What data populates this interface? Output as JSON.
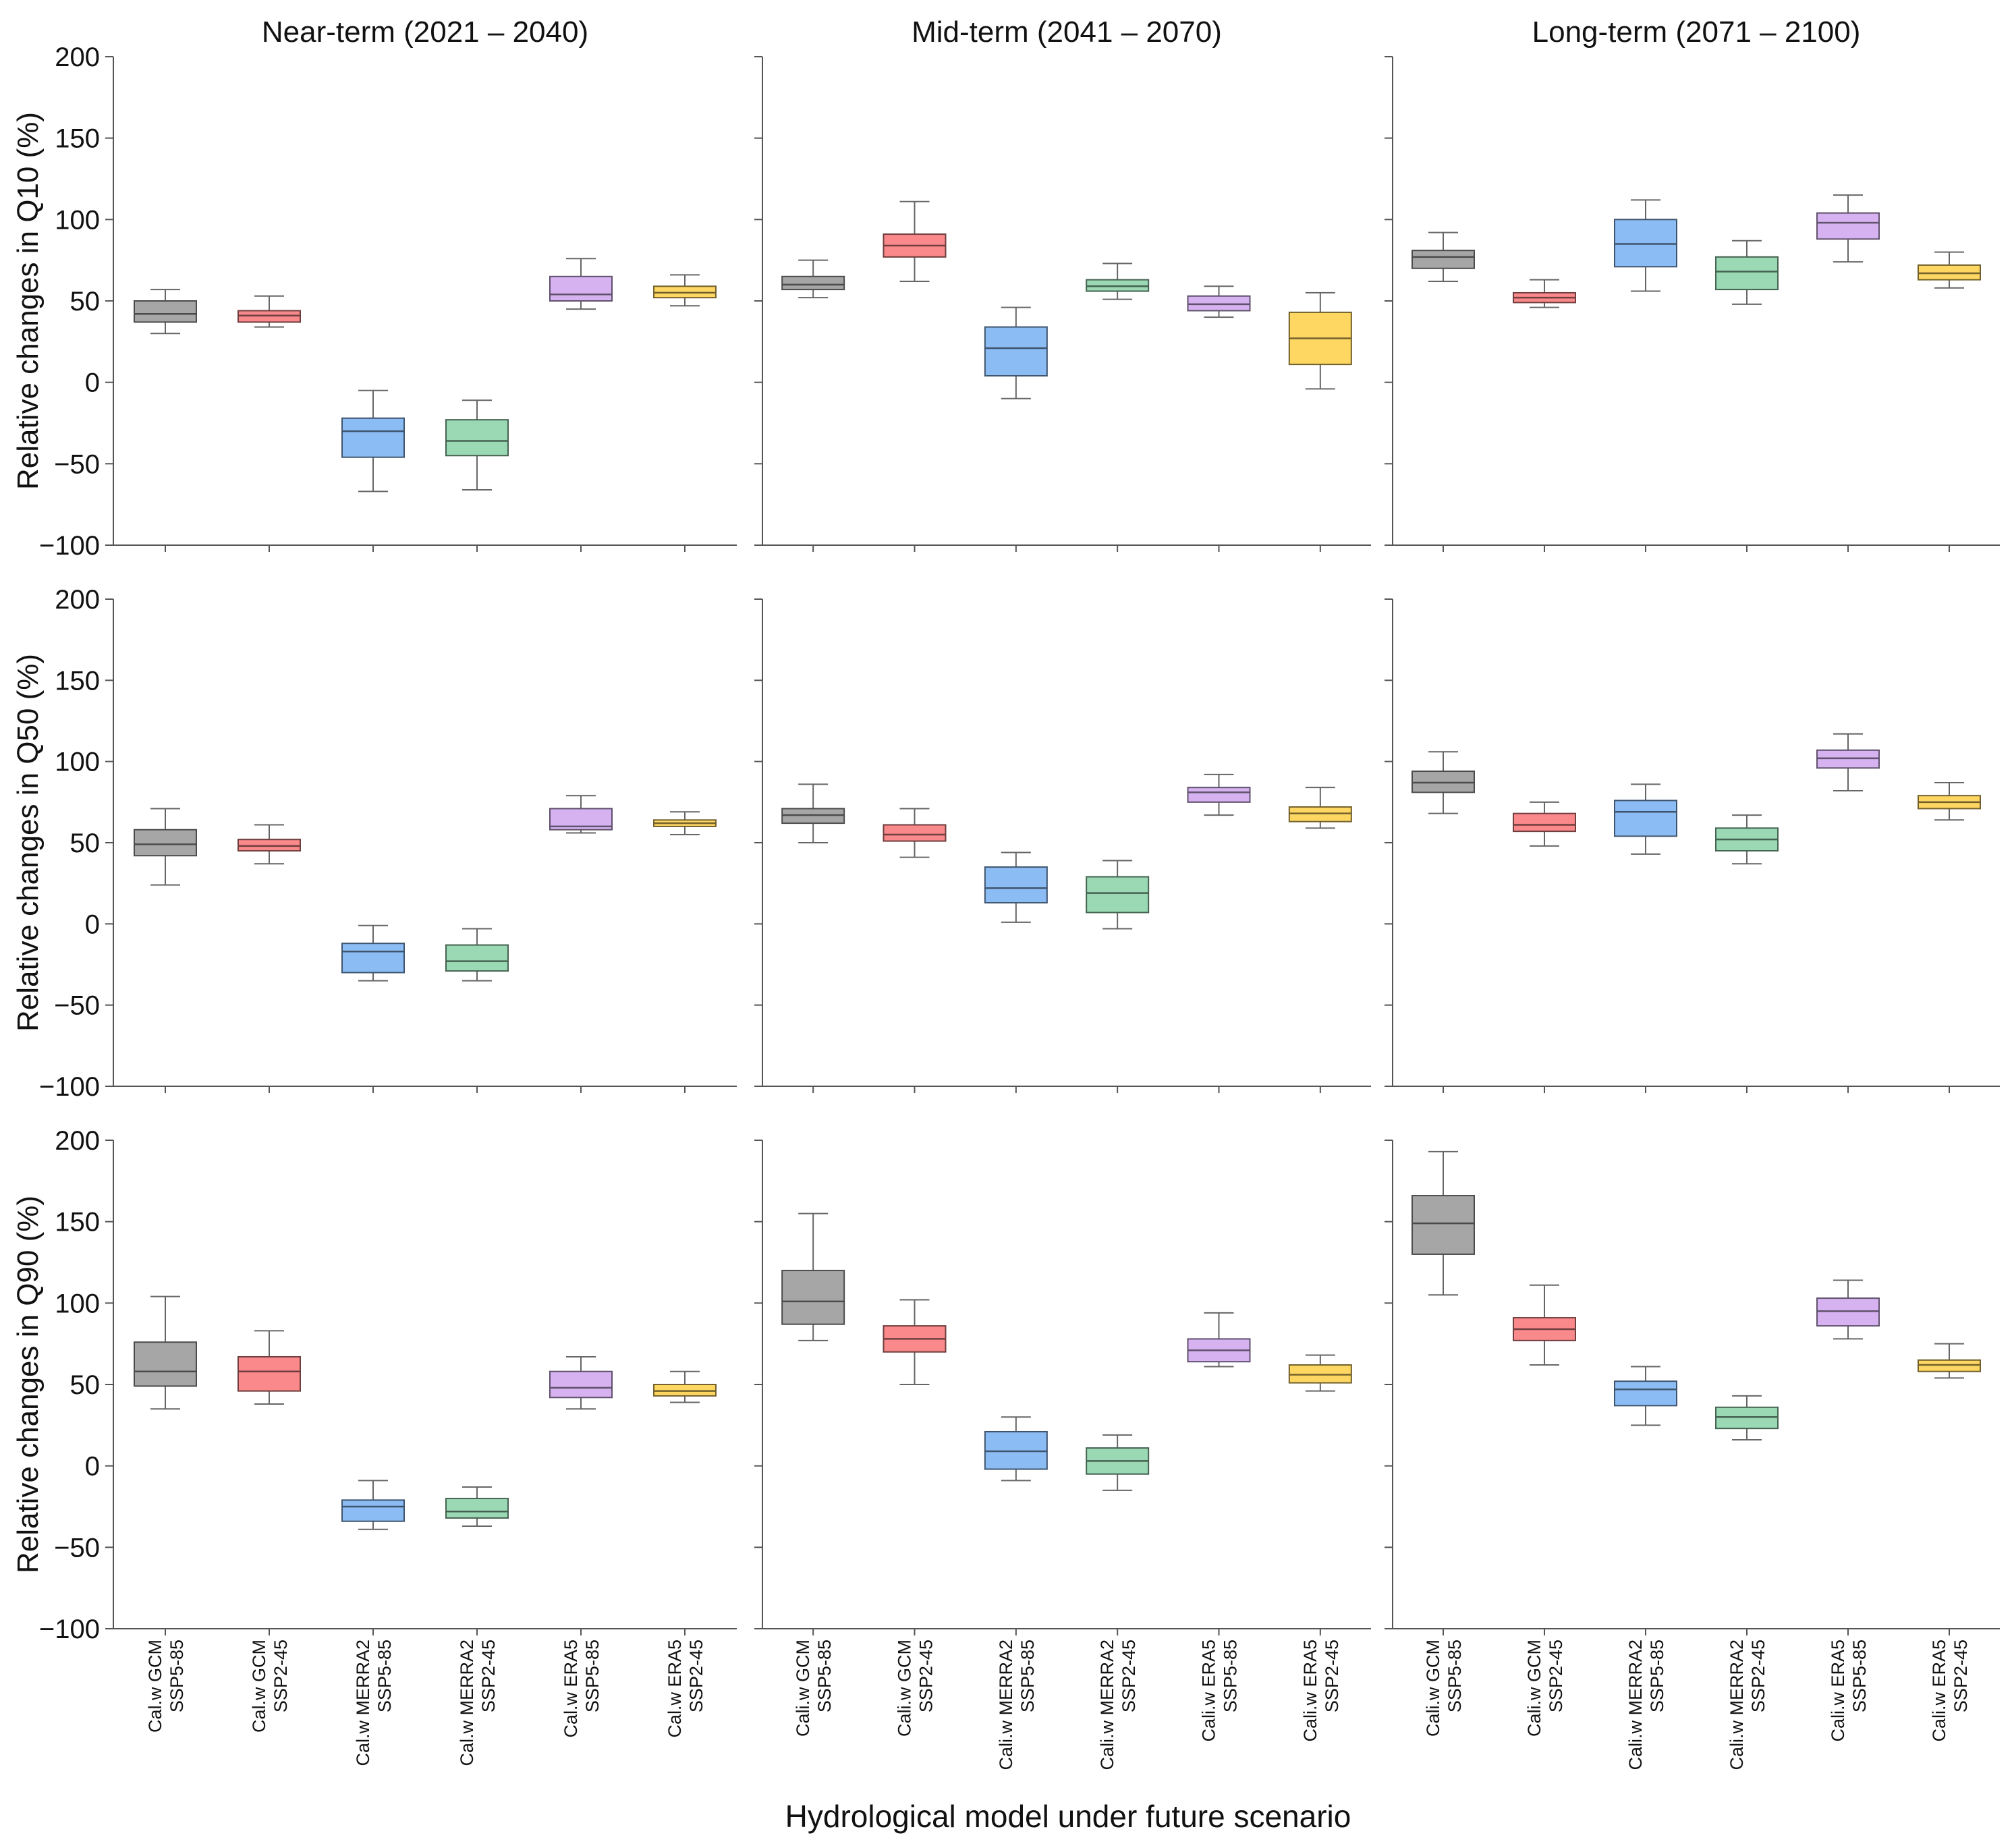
{
  "chart_data": {
    "type": "box",
    "xlabel": "Hydrological model under future scenario",
    "ylim": [
      -100,
      200
    ],
    "yticks": [
      -100,
      -50,
      0,
      50,
      100,
      150,
      200
    ],
    "grid": false,
    "legend": "none",
    "columns": [
      {
        "title": "Near-term (2021 – 2040)",
        "categories": [
          [
            "Cal.w GCM",
            "SSP5-85"
          ],
          [
            "Cal.w GCM",
            "SSP2-45"
          ],
          [
            "Cal.w MERRA2",
            "SSP5-85"
          ],
          [
            "Cal.w MERRA2",
            "SSP2-45"
          ],
          [
            "Cal.w ERA5",
            "SSP5-85"
          ],
          [
            "Cal.w ERA5",
            "SSP2-45"
          ]
        ]
      },
      {
        "title": "Mid-term (2041 – 2070)",
        "categories": [
          [
            "Cali.w GCM",
            "SSP5-85"
          ],
          [
            "Cali.w GCM",
            "SSP2-45"
          ],
          [
            "Cali.w MERRA2",
            "SSP5-85"
          ],
          [
            "Cali.w MERRA2",
            "SSP2-45"
          ],
          [
            "Cali.w ERA5",
            "SSP5-85"
          ],
          [
            "Cali.w ERA5",
            "SSP2-45"
          ]
        ]
      },
      {
        "title": "Long-term (2071 – 2100)",
        "categories": [
          [
            "Cali.w GCM",
            "SSP5-85"
          ],
          [
            "Cali.w GCM",
            "SSP2-45"
          ],
          [
            "Cali.w MERRA2",
            "SSP5-85"
          ],
          [
            "Cali.w MERRA2",
            "SSP2-45"
          ],
          [
            "Cali.w ERA5",
            "SSP5-85"
          ],
          [
            "Cali.w ERA5",
            "SSP2-45"
          ]
        ]
      }
    ],
    "rows": [
      {
        "ylabel": "Relative changes in Q10 (%)"
      },
      {
        "ylabel": "Relative changes in Q50 (%)"
      },
      {
        "ylabel": "Relative changes in Q90 (%)"
      }
    ],
    "colors": [
      "#a6a6a6",
      "#f9898a",
      "#8cbcf4",
      "#9ad9b4",
      "#d6b3f0",
      "#fdd762"
    ],
    "panels": [
      [
        [
          [
            30,
            37,
            42,
            50,
            57
          ],
          [
            34,
            37,
            41,
            44,
            53
          ],
          [
            -67,
            -46,
            -30,
            -22,
            -5
          ],
          [
            -66,
            -45,
            -36,
            -23,
            -11
          ],
          [
            45,
            50,
            54,
            65,
            76
          ],
          [
            47,
            52,
            55,
            59,
            66
          ]
        ],
        [
          [
            52,
            57,
            60,
            65,
            75
          ],
          [
            62,
            77,
            84,
            91,
            111
          ],
          [
            -10,
            4,
            21,
            34,
            46
          ],
          [
            51,
            56,
            59,
            63,
            73
          ],
          [
            40,
            44,
            48,
            53,
            59
          ],
          [
            -4,
            11,
            27,
            43,
            55
          ]
        ],
        [
          [
            62,
            70,
            77,
            81,
            92
          ],
          [
            46,
            49,
            52,
            55,
            63
          ],
          [
            56,
            71,
            85,
            100,
            112
          ],
          [
            48,
            57,
            68,
            77,
            87
          ],
          [
            74,
            88,
            98,
            104,
            115
          ],
          [
            58,
            63,
            67,
            72,
            80
          ]
        ]
      ],
      [
        [
          [
            24,
            42,
            49,
            58,
            71
          ],
          [
            37,
            45,
            48,
            52,
            61
          ],
          [
            -35,
            -30,
            -17,
            -12,
            -1
          ],
          [
            -35,
            -29,
            -23,
            -13,
            -3
          ],
          [
            56,
            58,
            60,
            71,
            79
          ],
          [
            55,
            60,
            62,
            64,
            69
          ]
        ],
        [
          [
            50,
            62,
            67,
            71,
            86
          ],
          [
            41,
            51,
            55,
            61,
            71
          ],
          [
            1,
            13,
            22,
            35,
            44
          ],
          [
            -3,
            7,
            19,
            29,
            39
          ],
          [
            67,
            75,
            81,
            84,
            92
          ],
          [
            59,
            63,
            68,
            72,
            84
          ]
        ],
        [
          [
            68,
            81,
            87,
            94,
            106
          ],
          [
            48,
            57,
            61,
            68,
            75
          ],
          [
            43,
            54,
            69,
            76,
            86
          ],
          [
            37,
            45,
            52,
            59,
            67
          ],
          [
            82,
            96,
            102,
            107,
            117
          ],
          [
            64,
            71,
            75,
            79,
            87
          ]
        ]
      ],
      [
        [
          [
            35,
            49,
            58,
            76,
            104
          ],
          [
            38,
            46,
            58,
            67,
            83
          ],
          [
            -39,
            -34,
            -25,
            -21,
            -9
          ],
          [
            -37,
            -32,
            -28,
            -20,
            -13
          ],
          [
            35,
            42,
            48,
            58,
            67
          ],
          [
            39,
            43,
            46,
            50,
            58
          ]
        ],
        [
          [
            77,
            87,
            101,
            120,
            155
          ],
          [
            50,
            70,
            78,
            86,
            102
          ],
          [
            -9,
            -2,
            9,
            21,
            30
          ],
          [
            -15,
            -5,
            3,
            11,
            19
          ],
          [
            61,
            64,
            71,
            78,
            94
          ],
          [
            46,
            51,
            56,
            62,
            68
          ]
        ],
        [
          [
            105,
            130,
            149,
            166,
            193
          ],
          [
            62,
            77,
            84,
            91,
            111
          ],
          [
            25,
            37,
            47,
            52,
            61
          ],
          [
            16,
            23,
            30,
            36,
            43
          ],
          [
            78,
            86,
            95,
            103,
            114
          ],
          [
            54,
            58,
            62,
            65,
            75
          ]
        ]
      ]
    ]
  }
}
